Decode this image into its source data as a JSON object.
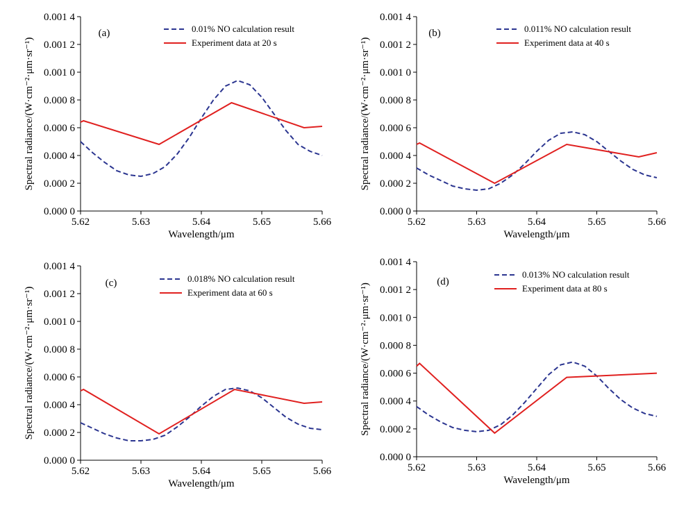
{
  "colors": {
    "calc": "#2b3590",
    "exp": "#e0201f"
  },
  "chart_data": [
    {
      "type": "line",
      "panel_label": "(a)",
      "xlabel": "Wavelength/μm",
      "ylabel": "Spectral radiance/(W·cm⁻²·μm·sr⁻¹)",
      "xlim": [
        5.62,
        5.66
      ],
      "ylim": [
        0.0,
        0.0014
      ],
      "x_ticks": [
        "5.62",
        "5.63",
        "5.64",
        "5.65",
        "5.66"
      ],
      "y_ticks": [
        "0.000 0",
        "0.000 2",
        "0.000 4",
        "0.000 6",
        "0.000 8",
        "0.001 0",
        "0.001 2",
        "0.001 4"
      ],
      "series": [
        {
          "name": "0.01% NO calculation result",
          "style": "dashed",
          "x": [
            5.62,
            5.622,
            5.624,
            5.626,
            5.628,
            5.63,
            5.632,
            5.634,
            5.636,
            5.638,
            5.64,
            5.642,
            5.644,
            5.646,
            5.648,
            5.65,
            5.652,
            5.654,
            5.656,
            5.658,
            5.66
          ],
          "y": [
            0.0005,
            0.00042,
            0.00035,
            0.00029,
            0.00026,
            0.00025,
            0.00027,
            0.00032,
            0.00041,
            0.00053,
            0.00067,
            0.0008,
            0.0009,
            0.00094,
            0.00091,
            0.00082,
            0.0007,
            0.00058,
            0.00048,
            0.00043,
            0.0004
          ]
        },
        {
          "name": "Experiment data at 20 s",
          "style": "solid",
          "x": [
            5.62,
            5.6205,
            5.633,
            5.645,
            5.657,
            5.66
          ],
          "y": [
            0.00064,
            0.00065,
            0.00048,
            0.00078,
            0.0006,
            0.00061
          ]
        }
      ]
    },
    {
      "type": "line",
      "panel_label": "(b)",
      "xlabel": "Wavelength/μm",
      "ylabel": "Spectral radiance/(W·cm⁻²·μm·sr⁻¹)",
      "xlim": [
        5.62,
        5.66
      ],
      "ylim": [
        0.0,
        0.0014
      ],
      "x_ticks": [
        "5.62",
        "5.63",
        "5.64",
        "5.65",
        "5.66"
      ],
      "y_ticks": [
        "0.000 0",
        "0.000 2",
        "0.000 4",
        "0.000 6",
        "0.000 8",
        "0.001 0",
        "0.001 2",
        "0.001 4"
      ],
      "series": [
        {
          "name": "0.011% NO calculation result",
          "style": "dashed",
          "x": [
            5.62,
            5.622,
            5.624,
            5.626,
            5.628,
            5.63,
            5.632,
            5.634,
            5.636,
            5.638,
            5.64,
            5.642,
            5.644,
            5.646,
            5.648,
            5.65,
            5.652,
            5.654,
            5.656,
            5.658,
            5.66
          ],
          "y": [
            0.00031,
            0.00026,
            0.00022,
            0.00018,
            0.00016,
            0.00015,
            0.00016,
            0.0002,
            0.00026,
            0.00034,
            0.00043,
            0.00051,
            0.00056,
            0.00057,
            0.00055,
            0.0005,
            0.00043,
            0.00036,
            0.0003,
            0.00026,
            0.00024
          ]
        },
        {
          "name": "Experiment data at 40 s",
          "style": "solid",
          "x": [
            5.62,
            5.6205,
            5.633,
            5.645,
            5.657,
            5.66
          ],
          "y": [
            0.00048,
            0.00049,
            0.0002,
            0.00048,
            0.00039,
            0.00042
          ]
        }
      ]
    },
    {
      "type": "line",
      "panel_label": "(c)",
      "xlabel": "Wavelength/μm",
      "ylabel": "Spectral radiance/(W·cm⁻²·μm·sr⁻¹)",
      "xlim": [
        5.62,
        5.66
      ],
      "ylim": [
        0.0,
        0.0014
      ],
      "x_ticks": [
        "5.62",
        "5.63",
        "5.64",
        "5.65",
        "5.66"
      ],
      "y_ticks": [
        "0.000 0",
        "0.000 2",
        "0.000 4",
        "0.000 6",
        "0.000 8",
        "0.001 0",
        "0.001 2",
        "0.001 4"
      ],
      "series": [
        {
          "name": "0.018% NO calculation result",
          "style": "dashed",
          "x": [
            5.62,
            5.622,
            5.624,
            5.626,
            5.628,
            5.63,
            5.632,
            5.634,
            5.636,
            5.638,
            5.64,
            5.642,
            5.644,
            5.646,
            5.648,
            5.65,
            5.652,
            5.654,
            5.656,
            5.658,
            5.66
          ],
          "y": [
            0.00027,
            0.00023,
            0.00019,
            0.00016,
            0.00014,
            0.00014,
            0.00015,
            0.00018,
            0.00024,
            0.00031,
            0.00039,
            0.00046,
            0.00051,
            0.00052,
            0.0005,
            0.00045,
            0.00038,
            0.00031,
            0.00026,
            0.00023,
            0.00022
          ]
        },
        {
          "name": "Experiment data at 60 s",
          "style": "solid",
          "x": [
            5.62,
            5.6205,
            5.633,
            5.6455,
            5.657,
            5.66
          ],
          "y": [
            0.0005,
            0.00051,
            0.00019,
            0.00051,
            0.00041,
            0.00042
          ]
        }
      ]
    },
    {
      "type": "line",
      "panel_label": "(d)",
      "xlabel": "Wavelength/μm",
      "ylabel": "Spectral radiance/(W·cm⁻²·μm·sr⁻¹)",
      "xlim": [
        5.62,
        5.66
      ],
      "ylim": [
        0.0,
        0.0014
      ],
      "x_ticks": [
        "5.62",
        "5.63",
        "5.64",
        "5.65",
        "5.66"
      ],
      "y_ticks": [
        "0.000 0",
        "0.000 2",
        "0.000 4",
        "0.000 6",
        "0.000 8",
        "0.001 0",
        "0.001 2",
        "0.001 4"
      ],
      "series": [
        {
          "name": "0.013% NO calculation result",
          "style": "dashed",
          "x": [
            5.62,
            5.622,
            5.624,
            5.626,
            5.628,
            5.63,
            5.632,
            5.634,
            5.636,
            5.638,
            5.64,
            5.642,
            5.644,
            5.646,
            5.648,
            5.65,
            5.652,
            5.654,
            5.656,
            5.658,
            5.66
          ],
          "y": [
            0.00036,
            0.0003,
            0.00025,
            0.00021,
            0.00019,
            0.00018,
            0.00019,
            0.00023,
            0.0003,
            0.00039,
            0.00049,
            0.00059,
            0.00066,
            0.00068,
            0.00065,
            0.00058,
            0.00049,
            0.00041,
            0.00035,
            0.00031,
            0.00029
          ]
        },
        {
          "name": "Experiment data at 80 s",
          "style": "solid",
          "x": [
            5.62,
            5.6205,
            5.633,
            5.645,
            5.655,
            5.66
          ],
          "y": [
            0.00065,
            0.00067,
            0.00017,
            0.00057,
            0.00059,
            0.0006
          ]
        }
      ]
    }
  ]
}
